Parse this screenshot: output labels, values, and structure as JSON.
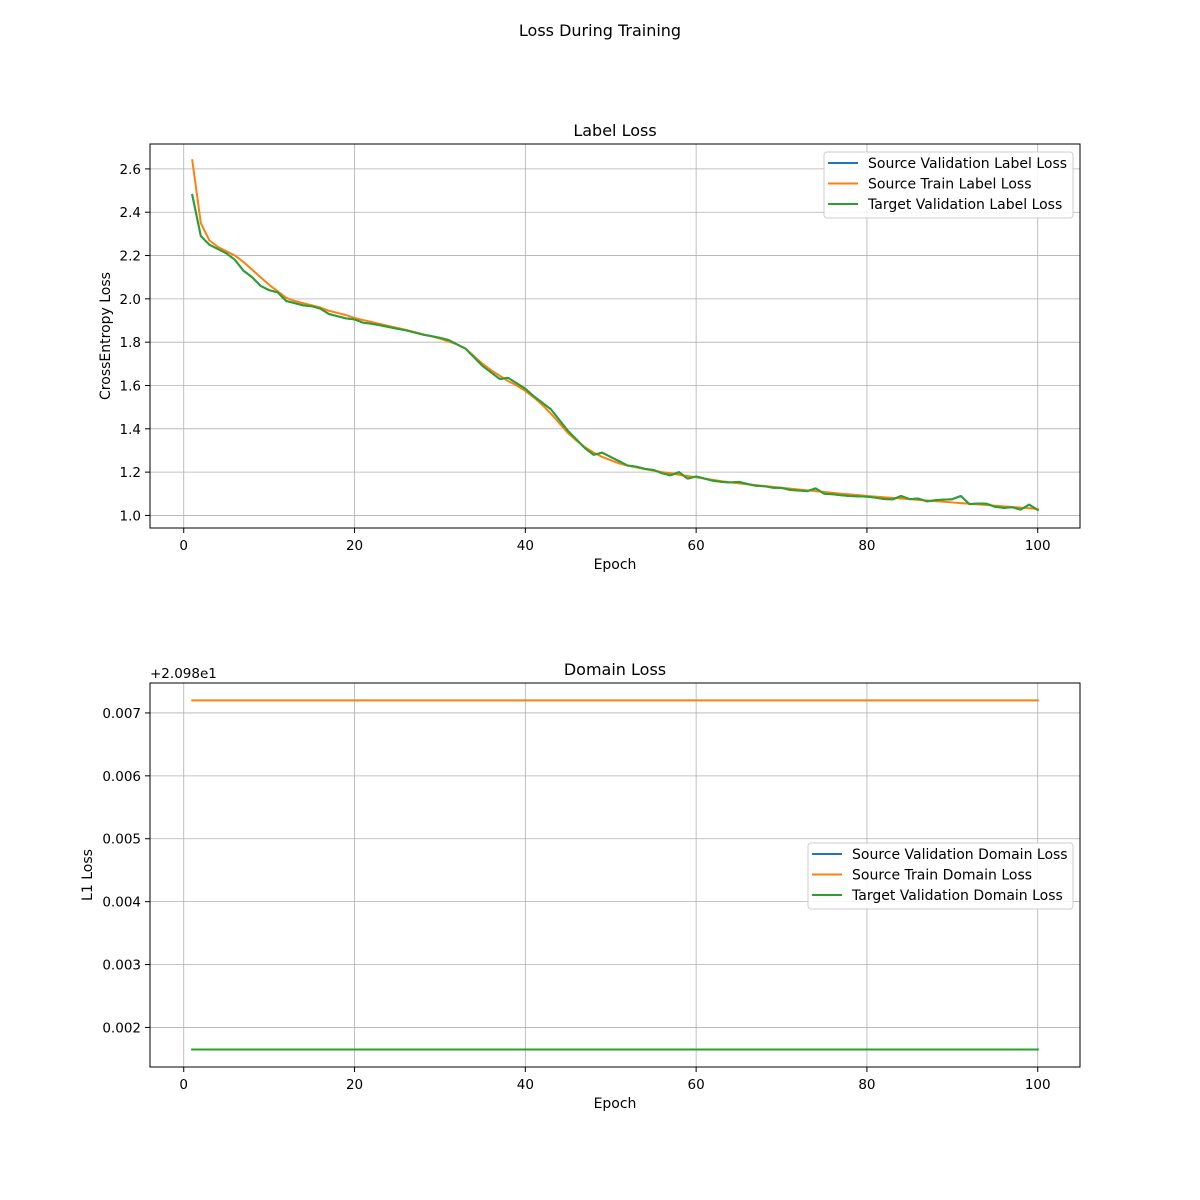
{
  "figure": {
    "suptitle": "Loss During Training"
  },
  "chart_data": [
    {
      "type": "line",
      "title": "Label Loss",
      "xlabel": "Epoch",
      "ylabel": "CrossEntropy Loss",
      "offset_text": "",
      "xlim": [
        -3.95,
        104.95
      ],
      "ylim": [
        0.942,
        2.715
      ],
      "xticks": [
        0,
        20,
        40,
        60,
        80,
        100
      ],
      "xtick_labels": [
        "0",
        "20",
        "40",
        "60",
        "80",
        "100"
      ],
      "yticks": [
        1.0,
        1.2,
        1.4,
        1.6,
        1.8,
        2.0,
        2.2,
        2.4,
        2.6
      ],
      "ytick_labels": [
        "1.0",
        "1.2",
        "1.4",
        "1.6",
        "1.8",
        "2.0",
        "2.2",
        "2.4",
        "2.6"
      ],
      "grid": true,
      "legend_position": "upper right",
      "x": [
        1,
        2,
        3,
        4,
        5,
        6,
        7,
        8,
        9,
        10,
        11,
        12,
        13,
        14,
        15,
        16,
        17,
        18,
        19,
        20,
        21,
        22,
        23,
        24,
        25,
        26,
        27,
        28,
        29,
        30,
        31,
        32,
        33,
        34,
        35,
        36,
        37,
        38,
        39,
        40,
        41,
        42,
        43,
        44,
        45,
        46,
        47,
        48,
        49,
        50,
        51,
        52,
        53,
        54,
        55,
        56,
        57,
        58,
        59,
        60,
        61,
        62,
        63,
        64,
        65,
        66,
        67,
        68,
        69,
        70,
        71,
        72,
        73,
        74,
        75,
        76,
        77,
        78,
        79,
        80,
        81,
        82,
        83,
        84,
        85,
        86,
        87,
        88,
        89,
        90,
        91,
        92,
        93,
        94,
        95,
        96,
        97,
        98,
        99,
        100
      ],
      "series": [
        {
          "name": "Source Validation Label Loss",
          "color": "#1f77b4",
          "values": [
            2.48,
            2.29,
            2.25,
            2.23,
            2.21,
            2.18,
            2.13,
            2.1,
            2.06,
            2.04,
            2.03,
            1.99,
            1.98,
            1.97,
            1.966,
            1.955,
            1.93,
            1.92,
            1.91,
            1.905,
            1.89,
            1.885,
            1.878,
            1.87,
            1.862,
            1.855,
            1.845,
            1.835,
            1.828,
            1.82,
            1.81,
            1.79,
            1.77,
            1.73,
            1.69,
            1.66,
            1.63,
            1.635,
            1.61,
            1.585,
            1.55,
            1.52,
            1.49,
            1.44,
            1.39,
            1.35,
            1.31,
            1.28,
            1.29,
            1.27,
            1.25,
            1.23,
            1.225,
            1.215,
            1.21,
            1.195,
            1.185,
            1.2,
            1.17,
            1.18,
            1.17,
            1.16,
            1.155,
            1.152,
            1.155,
            1.145,
            1.137,
            1.135,
            1.128,
            1.127,
            1.118,
            1.115,
            1.112,
            1.125,
            1.1,
            1.098,
            1.093,
            1.09,
            1.088,
            1.087,
            1.082,
            1.076,
            1.074,
            1.09,
            1.075,
            1.078,
            1.065,
            1.07,
            1.073,
            1.075,
            1.09,
            1.052,
            1.055,
            1.054,
            1.04,
            1.035,
            1.038,
            1.027,
            1.05,
            1.025
          ]
        },
        {
          "name": "Source Train Label Loss",
          "color": "#ff7f0e",
          "values": [
            2.64,
            2.35,
            2.27,
            2.24,
            2.22,
            2.2,
            2.17,
            2.135,
            2.1,
            2.065,
            2.035,
            2.005,
            1.99,
            1.98,
            1.97,
            1.96,
            1.945,
            1.935,
            1.925,
            1.912,
            1.902,
            1.893,
            1.884,
            1.875,
            1.866,
            1.857,
            1.847,
            1.837,
            1.827,
            1.817,
            1.803,
            1.79,
            1.77,
            1.735,
            1.7,
            1.67,
            1.645,
            1.62,
            1.6,
            1.575,
            1.545,
            1.51,
            1.47,
            1.425,
            1.38,
            1.345,
            1.315,
            1.29,
            1.27,
            1.255,
            1.24,
            1.23,
            1.222,
            1.214,
            1.207,
            1.2,
            1.194,
            1.188,
            1.182,
            1.176,
            1.17,
            1.164,
            1.158,
            1.153,
            1.148,
            1.144,
            1.14,
            1.136,
            1.132,
            1.128,
            1.124,
            1.12,
            1.116,
            1.112,
            1.108,
            1.104,
            1.1,
            1.097,
            1.094,
            1.09,
            1.087,
            1.084,
            1.081,
            1.078,
            1.075,
            1.072,
            1.069,
            1.066,
            1.063,
            1.06,
            1.057,
            1.054,
            1.051,
            1.048,
            1.045,
            1.042,
            1.039,
            1.036,
            1.033,
            1.03
          ]
        },
        {
          "name": "Target Validation Label Loss",
          "color": "#2ca02c",
          "values": [
            2.48,
            2.29,
            2.25,
            2.23,
            2.21,
            2.18,
            2.13,
            2.1,
            2.06,
            2.04,
            2.03,
            1.99,
            1.98,
            1.97,
            1.966,
            1.955,
            1.93,
            1.92,
            1.91,
            1.905,
            1.89,
            1.885,
            1.878,
            1.87,
            1.862,
            1.855,
            1.845,
            1.835,
            1.828,
            1.82,
            1.81,
            1.79,
            1.77,
            1.73,
            1.69,
            1.66,
            1.63,
            1.635,
            1.61,
            1.585,
            1.55,
            1.52,
            1.49,
            1.44,
            1.39,
            1.35,
            1.31,
            1.28,
            1.29,
            1.27,
            1.25,
            1.23,
            1.225,
            1.215,
            1.21,
            1.195,
            1.185,
            1.2,
            1.17,
            1.18,
            1.17,
            1.16,
            1.155,
            1.152,
            1.155,
            1.145,
            1.137,
            1.135,
            1.128,
            1.127,
            1.118,
            1.115,
            1.112,
            1.125,
            1.1,
            1.098,
            1.093,
            1.09,
            1.088,
            1.087,
            1.082,
            1.076,
            1.074,
            1.09,
            1.075,
            1.078,
            1.065,
            1.07,
            1.073,
            1.075,
            1.09,
            1.052,
            1.055,
            1.054,
            1.04,
            1.035,
            1.038,
            1.027,
            1.05,
            1.025
          ]
        }
      ]
    },
    {
      "type": "line",
      "title": "Domain Loss",
      "xlabel": "Epoch",
      "ylabel": "L1 Loss",
      "offset_text": "+2.098e1",
      "xlim": [
        -3.95,
        104.95
      ],
      "ylim": [
        0.001371,
        0.007476
      ],
      "xticks": [
        0,
        20,
        40,
        60,
        80,
        100
      ],
      "xtick_labels": [
        "0",
        "20",
        "40",
        "60",
        "80",
        "100"
      ],
      "yticks": [
        0.002,
        0.003,
        0.004,
        0.005,
        0.006,
        0.007
      ],
      "ytick_labels": [
        "0.002",
        "0.003",
        "0.004",
        "0.005",
        "0.006",
        "0.007"
      ],
      "grid": true,
      "legend_position": "center right",
      "x": [
        1,
        100
      ],
      "series": [
        {
          "name": "Source Validation Domain Loss",
          "color": "#1f77b4",
          "values": [
            0.00165,
            0.00165
          ]
        },
        {
          "name": "Source Train Domain Loss",
          "color": "#ff7f0e",
          "values": [
            0.0072,
            0.0072
          ]
        },
        {
          "name": "Target Validation Domain Loss",
          "color": "#2ca02c",
          "values": [
            0.00165,
            0.00165
          ]
        }
      ]
    }
  ]
}
